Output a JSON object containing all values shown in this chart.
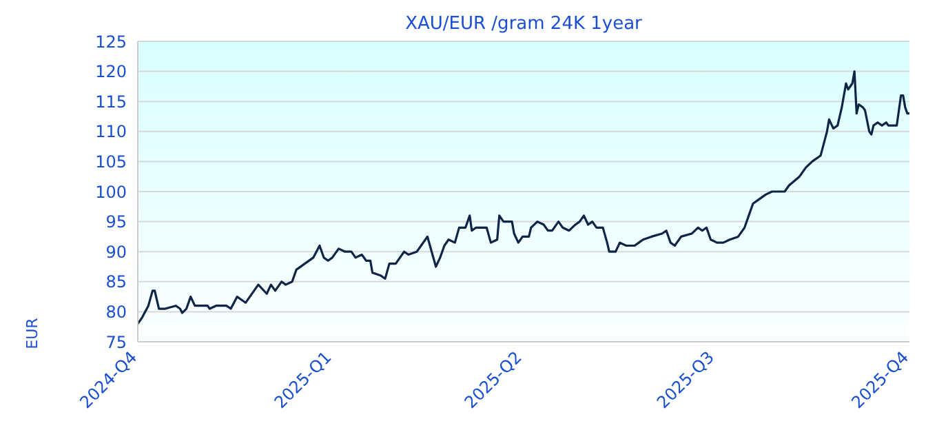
{
  "chart_data": {
    "type": "line",
    "title": "XAU/EUR /gram 24K 1year",
    "ylabel": "EUR",
    "x": [
      "2024-10-01",
      "2024-10-03",
      "2024-10-06",
      "2024-10-08",
      "2024-10-09",
      "2024-10-11",
      "2024-10-14",
      "2024-10-19",
      "2024-10-21",
      "2024-10-22",
      "2024-10-24",
      "2024-10-26",
      "2024-10-28",
      "2024-11-03",
      "2024-11-04",
      "2024-11-07",
      "2024-11-12",
      "2024-11-14",
      "2024-11-17",
      "2024-11-19",
      "2024-11-21",
      "2024-11-25",
      "2024-11-27",
      "2024-12-01",
      "2024-12-03",
      "2024-12-05",
      "2024-12-08",
      "2024-12-10",
      "2024-12-13",
      "2024-12-15",
      "2024-12-19",
      "2024-12-23",
      "2024-12-26",
      "2024-12-28",
      "2024-12-30",
      "2025-01-01",
      "2025-01-04",
      "2025-01-07",
      "2025-01-10",
      "2025-01-12",
      "2025-01-15",
      "2025-01-17",
      "2025-01-19",
      "2025-01-20",
      "2025-01-24",
      "2025-01-26",
      "2025-01-28",
      "2025-01-31",
      "2025-02-04",
      "2025-02-06",
      "2025-02-10",
      "2025-02-12",
      "2025-02-15",
      "2025-02-17",
      "2025-02-19",
      "2025-02-21",
      "2025-02-23",
      "2025-02-25",
      "2025-02-28",
      "2025-03-02",
      "2025-03-05",
      "2025-03-07",
      "2025-03-08",
      "2025-03-10",
      "2025-03-12",
      "2025-03-15",
      "2025-03-17",
      "2025-03-20",
      "2025-03-21",
      "2025-03-23",
      "2025-03-27",
      "2025-03-28",
      "2025-03-30",
      "2025-04-01",
      "2025-04-04",
      "2025-04-05",
      "2025-04-08",
      "2025-04-11",
      "2025-04-13",
      "2025-04-15",
      "2025-04-18",
      "2025-04-20",
      "2025-04-23",
      "2025-04-26",
      "2025-04-28",
      "2025-04-30",
      "2025-05-02",
      "2025-05-04",
      "2025-05-06",
      "2025-05-09",
      "2025-05-11",
      "2025-05-12",
      "2025-05-15",
      "2025-05-17",
      "2025-05-20",
      "2025-05-24",
      "2025-05-26",
      "2025-05-28",
      "2025-06-01",
      "2025-06-06",
      "2025-06-08",
      "2025-06-10",
      "2025-06-12",
      "2025-06-15",
      "2025-06-20",
      "2025-06-23",
      "2025-06-25",
      "2025-06-27",
      "2025-06-29",
      "2025-07-02",
      "2025-07-05",
      "2025-07-08",
      "2025-07-12",
      "2025-07-15",
      "2025-07-17",
      "2025-07-19",
      "2025-07-21",
      "2025-07-25",
      "2025-07-28",
      "2025-07-31",
      "2025-08-03",
      "2025-08-05",
      "2025-08-10",
      "2025-08-13",
      "2025-08-16",
      "2025-08-20",
      "2025-08-23",
      "2025-08-24",
      "2025-08-26",
      "2025-08-28",
      "2025-08-30",
      "2025-08-31",
      "2025-09-01",
      "2025-09-02",
      "2025-09-04",
      "2025-09-05",
      "2025-09-06",
      "2025-09-07",
      "2025-09-09",
      "2025-09-10",
      "2025-09-12",
      "2025-09-13",
      "2025-09-14",
      "2025-09-16",
      "2025-09-18",
      "2025-09-20",
      "2025-09-21",
      "2025-09-25",
      "2025-09-26",
      "2025-09-27",
      "2025-09-28",
      "2025-09-29",
      "2025-09-30",
      "2025-10-01"
    ],
    "series": [
      {
        "color": "#0f2548",
        "values": [
          78,
          79,
          81,
          83.5,
          83.5,
          80.5,
          80.5,
          81,
          80.5,
          79.8,
          80.5,
          82.5,
          81,
          81,
          80.5,
          81,
          81,
          80.5,
          82.5,
          82,
          81.5,
          83.5,
          84.5,
          83,
          84.5,
          83.5,
          85,
          84.5,
          85,
          87,
          88,
          89,
          91,
          89,
          88.5,
          89,
          90.5,
          90,
          90,
          89,
          89.5,
          88.5,
          88.5,
          86.5,
          86,
          85.5,
          88,
          88,
          90,
          89.5,
          90,
          91,
          92.5,
          90,
          87.5,
          89,
          91,
          92,
          91.5,
          94,
          94,
          96,
          93.5,
          94,
          94,
          94,
          91.5,
          92,
          96,
          95,
          95,
          93,
          91.5,
          92.5,
          92.5,
          94,
          95,
          94.5,
          93.5,
          93.5,
          95,
          94,
          93.5,
          94.5,
          95,
          96,
          94.5,
          95,
          94,
          94,
          91.5,
          90,
          90,
          91.5,
          91,
          91,
          91.5,
          92,
          92.5,
          93,
          93.5,
          91.5,
          91,
          92.5,
          93,
          94,
          93.5,
          94,
          92,
          91.5,
          91.5,
          92,
          92.5,
          94,
          96,
          98,
          98.5,
          99.5,
          100,
          100,
          100,
          101,
          102.5,
          104,
          105,
          106,
          110,
          112,
          110.5,
          111,
          114,
          116,
          118,
          117,
          118,
          120,
          113,
          114.5,
          114,
          113.5,
          110,
          109.5,
          111,
          111.5,
          111,
          111.5,
          111,
          111,
          113.5,
          116,
          116,
          114,
          113,
          113
        ]
      }
    ],
    "xlim": [
      "2024-10-01",
      "2025-10-01"
    ],
    "xticks": [
      {
        "value": "2024-10-01",
        "label": "2024-Q4"
      },
      {
        "value": "2025-01-01",
        "label": "2025-Q1"
      },
      {
        "value": "2025-04-01",
        "label": "2025-Q2"
      },
      {
        "value": "2025-07-01",
        "label": "2025-Q3"
      },
      {
        "value": "2025-10-01",
        "label": "2025-Q4"
      }
    ],
    "ylim": [
      75,
      125
    ],
    "yticks": [
      75,
      80,
      85,
      90,
      95,
      100,
      105,
      110,
      115,
      120,
      125
    ],
    "grid": "y",
    "legend": false,
    "marker": "none",
    "line_style": "solid"
  }
}
